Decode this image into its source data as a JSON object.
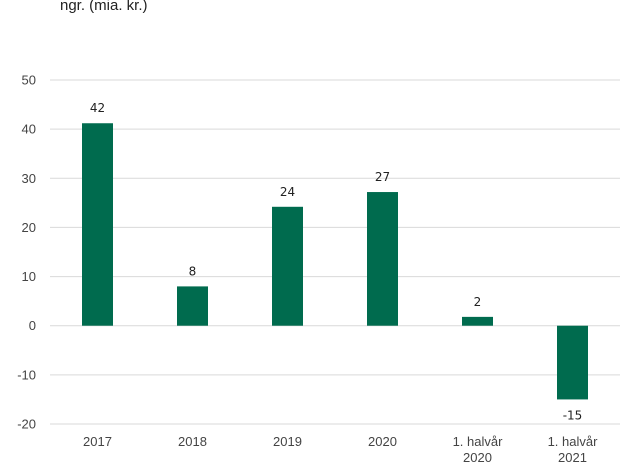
{
  "chart_data": {
    "type": "bar",
    "title": "ngr. (mia. kr.)",
    "xlabel": "",
    "ylabel": "",
    "ylim": [
      -20,
      50
    ],
    "yticks": [
      "50",
      "40",
      "30",
      "20",
      "10",
      "0",
      "-10",
      "-20"
    ],
    "ytick_values": [
      50,
      40,
      30,
      20,
      10,
      0,
      -10,
      -20
    ],
    "grid": true,
    "legend": "none",
    "bar_color": "#006b4e",
    "categories": [
      [
        "2017"
      ],
      [
        "2018"
      ],
      [
        "2019"
      ],
      [
        "2020"
      ],
      [
        "1. halvår",
        "2020"
      ],
      [
        "1. halvår",
        "2021"
      ]
    ],
    "values": [
      42,
      8,
      24,
      27,
      2,
      -15
    ],
    "data_labels": [
      "42",
      "8",
      "24",
      "27",
      "2",
      "-15"
    ],
    "plotted_values": [
      41.2,
      8,
      24.2,
      27.2,
      1.8,
      -15
    ]
  }
}
